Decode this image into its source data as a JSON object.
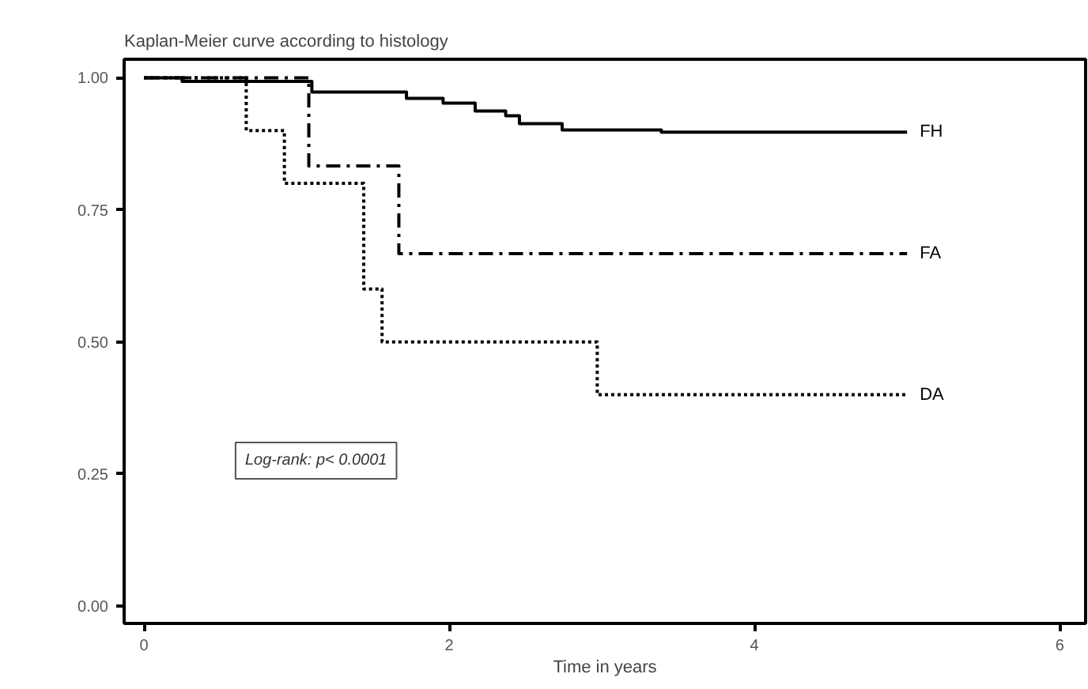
{
  "chart_data": {
    "type": "step",
    "title": "Kaplan-Meier curve according to histology",
    "xlabel": "Time in years",
    "xlim": [
      -0.13,
      6.17
    ],
    "ylim": [
      -0.033,
      1.035
    ],
    "xticks": [
      0,
      2,
      4,
      6
    ],
    "yticks": [
      {
        "value": 0,
        "label": "0.00"
      },
      {
        "value": 0.25,
        "label": "0.25"
      },
      {
        "value": 0.5,
        "label": "0.50"
      },
      {
        "value": 0.75,
        "label": "0.75"
      },
      {
        "value": 1,
        "label": "1.00"
      }
    ],
    "grid": false,
    "series": [
      {
        "name": "FH",
        "color": "#000000",
        "line_style": "solid",
        "x": [
          0,
          0.25,
          1.1,
          1.72,
          1.96,
          2.17,
          2.37,
          2.46,
          2.74,
          3.39,
          5.0
        ],
        "values": [
          1,
          0.993,
          0.973,
          0.961,
          0.952,
          0.937,
          0.928,
          0.913,
          0.901,
          0.897,
          0.897
        ]
      },
      {
        "name": "FA",
        "color": "#000000",
        "line_style": "dashdot",
        "x": [
          0,
          1.08,
          1.67,
          5.0
        ],
        "values": [
          1,
          0.833,
          0.667,
          0.667
        ]
      },
      {
        "name": "DA",
        "color": "#000000",
        "line_style": "dotted",
        "x": [
          0,
          0.67,
          0.92,
          1.44,
          1.56,
          2.97,
          5.0
        ],
        "values": [
          1,
          0.9,
          0.8,
          0.6,
          0.5,
          0.4,
          0.4
        ]
      }
    ],
    "annotations": [
      "Log-rank: p< 0.0001"
    ]
  }
}
